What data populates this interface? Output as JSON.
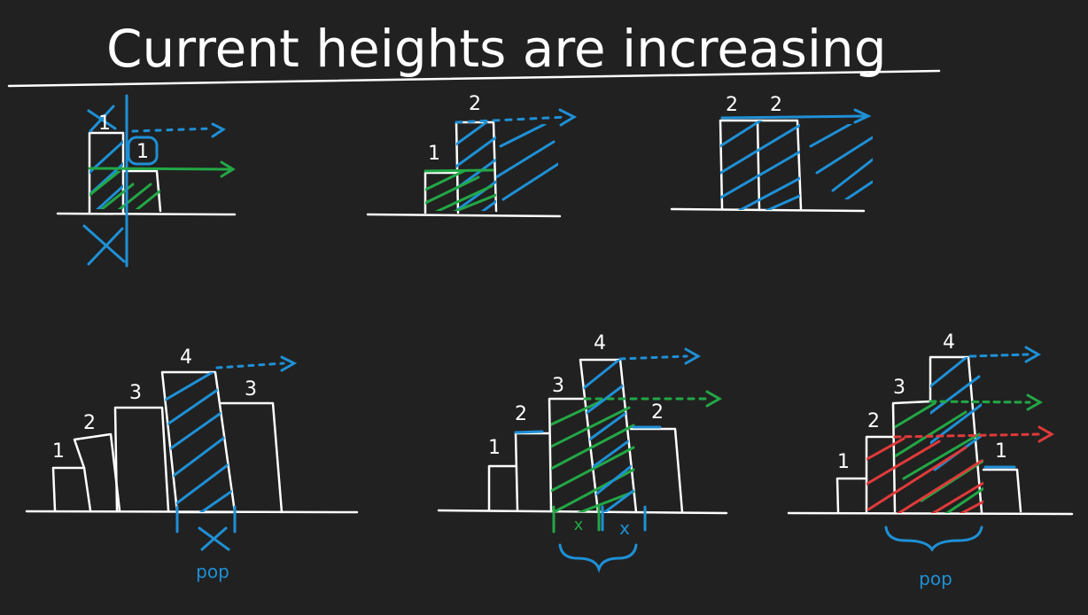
{
  "title": "Current heights are increasing",
  "panels": [
    {
      "labels": [
        "1"
      ],
      "circled_label": "1"
    },
    {
      "labels": [
        "1",
        "2"
      ]
    },
    {
      "labels": [
        "2",
        "2"
      ]
    },
    {
      "labels": [
        "1",
        "2",
        "3",
        "4",
        "3"
      ],
      "pop_label": "pop"
    },
    {
      "labels": [
        "1",
        "2",
        "3",
        "4",
        "2"
      ],
      "marks": [
        "x",
        "x"
      ]
    },
    {
      "labels": [
        "1",
        "2",
        "3",
        "4",
        "1"
      ],
      "pop_label": "pop"
    }
  ],
  "colors": {
    "background": "#212121",
    "blue": "#1e90d6",
    "green": "#22a845",
    "red": "#e03a3a",
    "ink": "#ffffff"
  }
}
